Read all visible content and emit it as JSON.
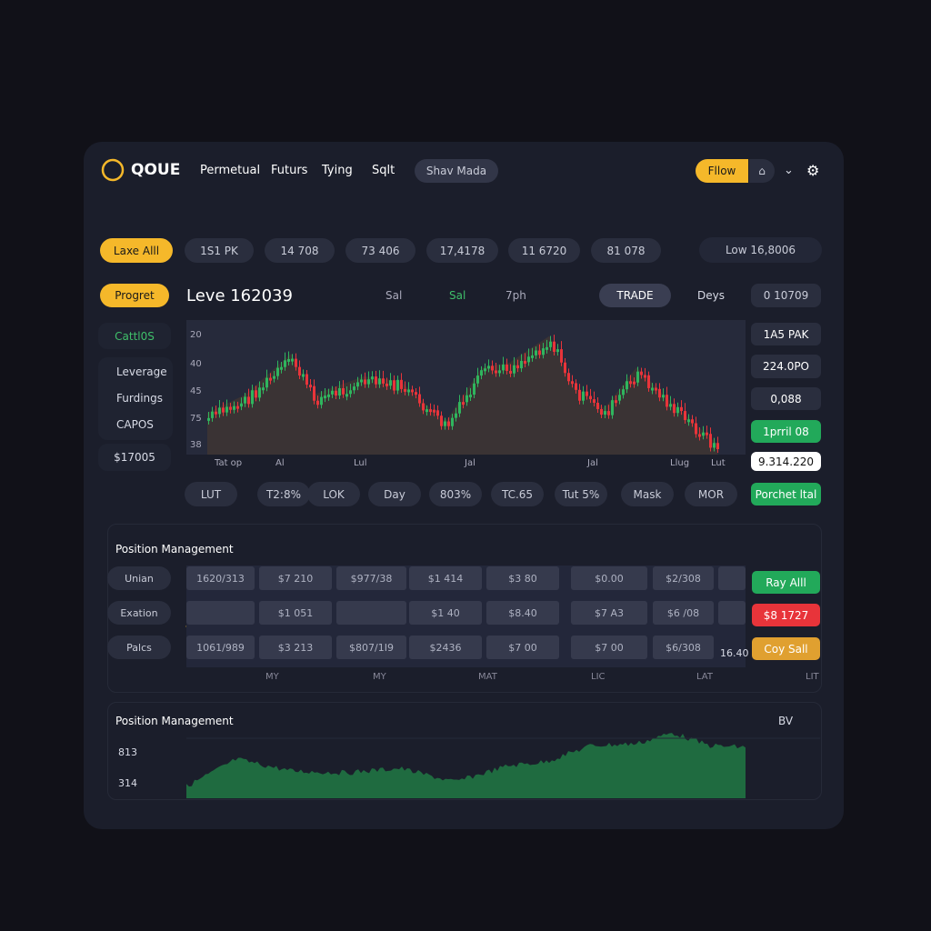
{
  "header": {
    "logo": "QOUE",
    "nav": [
      "Permetual",
      "Futurs",
      "Tying",
      "Sqlt"
    ],
    "mode": "Shav Mada",
    "follow": "Fllow"
  },
  "stats": {
    "primary": "Laxe Alll",
    "pills": [
      "1S1 PK",
      "14 708",
      "73 406",
      "17,4178",
      "11 6720",
      "81 078"
    ],
    "low": "Low 16,8006"
  },
  "toolbar": {
    "primary": "Progret",
    "title": "Leve 162039",
    "filters": [
      "Sal",
      "Sal",
      "7ph"
    ],
    "trade": "TRADE",
    "days": "Deys",
    "price": "0 10709"
  },
  "sidebar": {
    "top": "Cattl0S",
    "menu": [
      "Leverage",
      "Furdings",
      "CAPOS"
    ],
    "balance": "$17005"
  },
  "chart": {
    "y_labels": [
      "20",
      "40",
      "45",
      "75",
      "38"
    ],
    "x_labels": [
      "Tat op",
      "Al",
      "Lul",
      "Jal",
      "Jal",
      "Llug",
      "Lut"
    ]
  },
  "side_values": [
    "1A5 PAK",
    "224.0PO",
    "0,088",
    "1prril 08",
    "9.314.220",
    "Porchet ltal"
  ],
  "chips": [
    "LUT",
    "T2:8%",
    "LOK",
    "Day",
    "803%",
    "TC.65",
    "Tut 5%",
    "Mask",
    "MOR"
  ],
  "positions": {
    "title": "Position Management",
    "row_labels": [
      "Unian",
      "Exation",
      "Palcs"
    ],
    "rows": [
      [
        "1620/313",
        "$7 210",
        "$977/38",
        "$1 414",
        "$3 80",
        "$0.00",
        "$2/308"
      ],
      [
        null,
        "$1 051",
        null,
        "$1 40",
        "$8.40",
        "$7 A3",
        "$6 /08"
      ],
      [
        "1061/989",
        "$3 213",
        "$807/1I9",
        "$2436",
        "$7 00",
        "$7 00",
        "$6/308"
      ]
    ],
    "x_labels": [
      "MY",
      "MY",
      "MAT",
      "LIC",
      "LAT",
      "LIT"
    ],
    "last": "16.40",
    "actions": [
      "Ray Alll",
      "$8 1727",
      "Coy Sall"
    ]
  },
  "bottom": {
    "title": "Position Management",
    "period": "BV",
    "y_labels": [
      "813",
      "314"
    ]
  }
}
